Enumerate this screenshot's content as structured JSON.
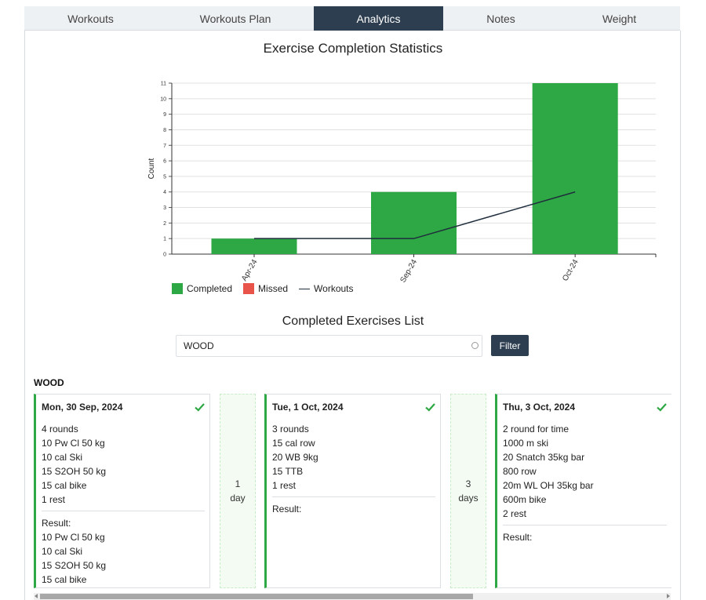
{
  "tabs": [
    {
      "label": "Workouts"
    },
    {
      "label": "Workouts Plan"
    },
    {
      "label": "Analytics",
      "active": true
    },
    {
      "label": "Notes"
    },
    {
      "label": "Weight"
    }
  ],
  "chart_title": "Exercise Completion Statistics",
  "chart_data": {
    "type": "bar",
    "title": "Exercise Completion Statistics",
    "ylabel": "Count",
    "xlabel": "",
    "categories": [
      "Apr-24",
      "Sep-24",
      "Oct-24"
    ],
    "ylim": [
      0,
      11
    ],
    "yticks": [
      "0",
      "1",
      "2",
      "3",
      "4",
      "5",
      "6",
      "7",
      "8",
      "9",
      "10",
      "11"
    ],
    "grid": true,
    "legend_position": "bottom-left",
    "series": [
      {
        "name": "Completed",
        "type": "bar",
        "color": "#2ea844",
        "values": [
          1,
          4,
          11
        ]
      },
      {
        "name": "Missed",
        "type": "bar",
        "color": "#e8534a",
        "values": [
          0,
          0,
          0
        ]
      },
      {
        "name": "Workouts",
        "type": "line",
        "color": "#1f2d3d",
        "values": [
          1,
          1,
          4
        ]
      }
    ]
  },
  "list_title": "Completed Exercises List",
  "search": {
    "value": "WOOD",
    "placeholder": ""
  },
  "filter_label": "Filter",
  "section_label": "WOOD",
  "cards": [
    {
      "date": "Mon, 30 Sep, 2024",
      "lines": [
        "4 rounds",
        "10 Pw Cl 50 kg",
        "10 cal Ski",
        "15 S2OH 50 kg",
        "15 cal bike",
        "1 rest"
      ],
      "result_label": "Result:",
      "result_lines": [
        "10 Pw Cl 50 kg",
        "10 cal Ski",
        "15 S2OH 50 kg",
        "15 cal bike"
      ]
    },
    {
      "date": "Tue, 1 Oct, 2024",
      "lines": [
        "3 rounds",
        "15 cal row",
        "20 WB 9kg",
        "15 TTB",
        "1 rest"
      ],
      "result_label": "Result:",
      "result_lines": []
    },
    {
      "date": "Thu, 3 Oct, 2024",
      "lines": [
        "2 round for time",
        "1000 m ski",
        "20 Snatch 35kg bar",
        "800 row",
        "20m WL OH 35kg bar",
        "600m bike",
        "2 rest"
      ],
      "result_label": "Result:",
      "result_lines": []
    }
  ],
  "gaps": [
    {
      "number": "1",
      "unit": "day"
    },
    {
      "number": "3",
      "unit": "days"
    }
  ],
  "colors": {
    "accent": "#2d3e50",
    "completed": "#2ea844",
    "missed": "#e8534a",
    "workouts_line": "#1f2d3d"
  },
  "icons": {
    "check": "check-icon",
    "clear": "clear-circle-icon"
  }
}
